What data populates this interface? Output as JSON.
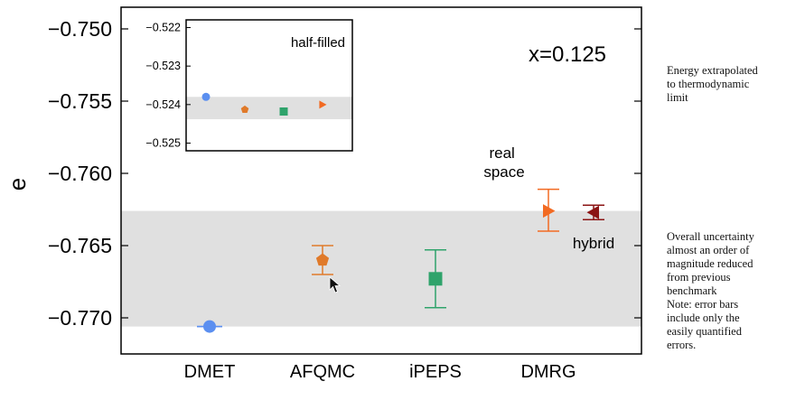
{
  "chart_data": {
    "type": "scatter",
    "xlabel": "",
    "ylabel": "e",
    "categories": [
      "DMET",
      "AFQMC",
      "iPEPS",
      "DMRG"
    ],
    "ylim": [
      -0.7725,
      -0.7485
    ],
    "yticks": [
      -0.75,
      -0.755,
      -0.76,
      -0.765,
      -0.77
    ],
    "ytick_labels": [
      "−0.750",
      "−0.755",
      "−0.760",
      "−0.765",
      "−0.770"
    ],
    "uncertainty_band": [
      -0.7706,
      -0.7626
    ],
    "band_color": "#e0e0e0",
    "grid": false,
    "annotations": {
      "doping": "x=0.125",
      "real_space": "real\nspace",
      "hybrid": "hybrid"
    },
    "points": [
      {
        "label": "DMET",
        "x": 0,
        "y": -0.7706,
        "err_low": -0.7706,
        "err_high": -0.7706,
        "marker": "circle",
        "color": "#5b8ff0"
      },
      {
        "label": "AFQMC",
        "x": 1,
        "y": -0.766,
        "err_low": -0.767,
        "err_high": -0.765,
        "marker": "pentagon",
        "color": "#e07a2a"
      },
      {
        "label": "iPEPS",
        "x": 2,
        "y": -0.7673,
        "err_low": -0.7693,
        "err_high": -0.7653,
        "marker": "square",
        "color": "#2fa36b"
      },
      {
        "label": "real space",
        "x": 3.0,
        "y": -0.7626,
        "err_low": -0.764,
        "err_high": -0.7611,
        "marker": "triangle-right",
        "color": "#f26a22"
      },
      {
        "label": "hybrid",
        "x": 3.4,
        "y": -0.7627,
        "err_low": -0.7632,
        "err_high": -0.7622,
        "marker": "triangle-left",
        "color": "#8b1414"
      }
    ],
    "inset": {
      "title": "half-filled",
      "ylim": [
        -0.5252,
        -0.5218
      ],
      "yticks": [
        -0.522,
        -0.523,
        -0.524,
        -0.525
      ],
      "ytick_labels": [
        "−0.522",
        "−0.523",
        "−0.524",
        "−0.525"
      ],
      "band": [
        -0.52438,
        -0.5238
      ],
      "points": [
        {
          "x": 0,
          "y": -0.5238,
          "marker": "circle",
          "color": "#5b8ff0"
        },
        {
          "x": 1,
          "y": -0.52413,
          "marker": "pentagon",
          "color": "#e07a2a"
        },
        {
          "x": 2,
          "y": -0.52418,
          "marker": "square",
          "color": "#2fa36b"
        },
        {
          "x": 3,
          "y": -0.524,
          "marker": "triangle-right",
          "color": "#f26a22"
        }
      ]
    }
  },
  "notes": {
    "note1": "Energy extrapolated\nto thermodynamic\nlimit",
    "note2": "Overall uncertainty\nalmost an order of\nmagnitude reduced\nfrom previous\nbenchmark\nNote: error bars\ninclude only the\neasily quantified\nerrors."
  }
}
